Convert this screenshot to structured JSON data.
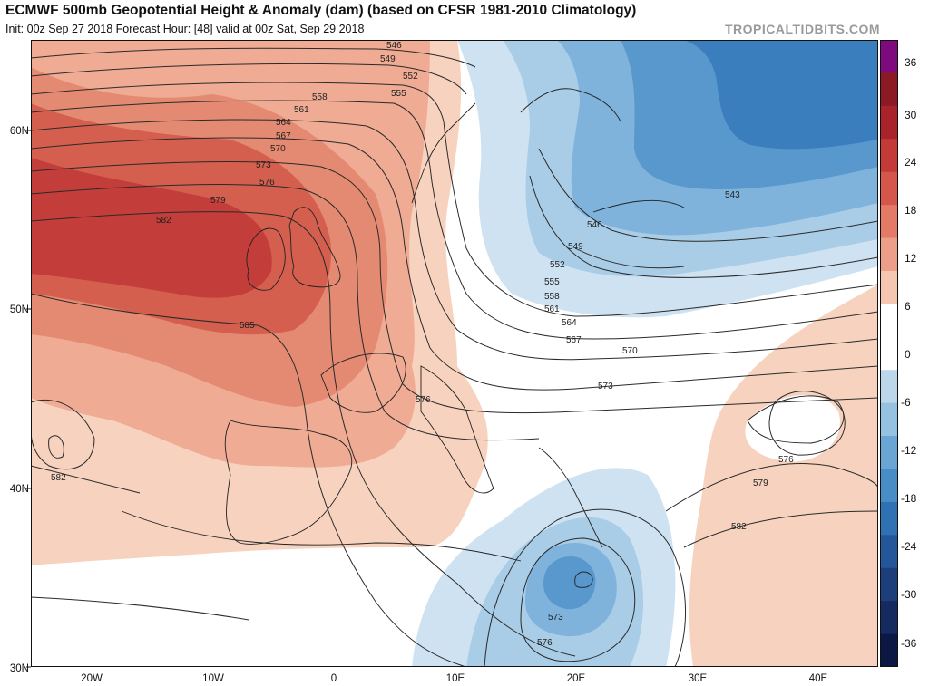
{
  "header": {
    "title": "ECMWF 500mb Geopotential Height & Anomaly (dam) (based on CFSR 1981-2010 Climatology)",
    "subtitle": "Init: 00z Sep 27 2018   Forecast Hour: [48]   valid at 00z Sat, Sep 29 2018",
    "brand": "TROPICALTIDBITS.COM"
  },
  "map": {
    "lon_range": [
      -25,
      45
    ],
    "lat_range": [
      30,
      65
    ],
    "lon_ticks": [
      {
        "value": -20,
        "label": "20W"
      },
      {
        "value": -10,
        "label": "10W"
      },
      {
        "value": 0,
        "label": "0"
      },
      {
        "value": 10,
        "label": "10E"
      },
      {
        "value": 20,
        "label": "20E"
      },
      {
        "value": 30,
        "label": "30E"
      },
      {
        "value": 40,
        "label": "40E"
      }
    ],
    "lat_ticks": [
      {
        "value": 30,
        "label": "30N"
      },
      {
        "value": 40,
        "label": "40N"
      },
      {
        "value": 50,
        "label": "50N"
      },
      {
        "value": 60,
        "label": "60N"
      }
    ],
    "height_contour_labels": [
      "546",
      "549",
      "552",
      "555",
      "558",
      "561",
      "564",
      "567",
      "570",
      "573",
      "576",
      "579",
      "582",
      "585",
      "543",
      "546",
      "549",
      "552",
      "555",
      "558",
      "561",
      "564",
      "567",
      "570",
      "573",
      "576",
      "579",
      "582",
      "576",
      "582",
      "573",
      "576"
    ]
  },
  "colorbar": {
    "ticks": [
      "36",
      "30",
      "24",
      "18",
      "12",
      "6",
      "0",
      "-6",
      "-12",
      "-18",
      "-24",
      "-30",
      "-36"
    ],
    "colors": [
      "#7e0a7e",
      "#8c1a24",
      "#a8242a",
      "#c33a37",
      "#d5564a",
      "#e27a66",
      "#ec9e88",
      "#f5c6b0",
      "#ffffff",
      "#ffffff",
      "#bcd7ea",
      "#94c2e0",
      "#6aa6d3",
      "#478dc6",
      "#2f72b3",
      "#23579a",
      "#1c3f7c",
      "#152a5e",
      "#0d1743"
    ]
  }
}
